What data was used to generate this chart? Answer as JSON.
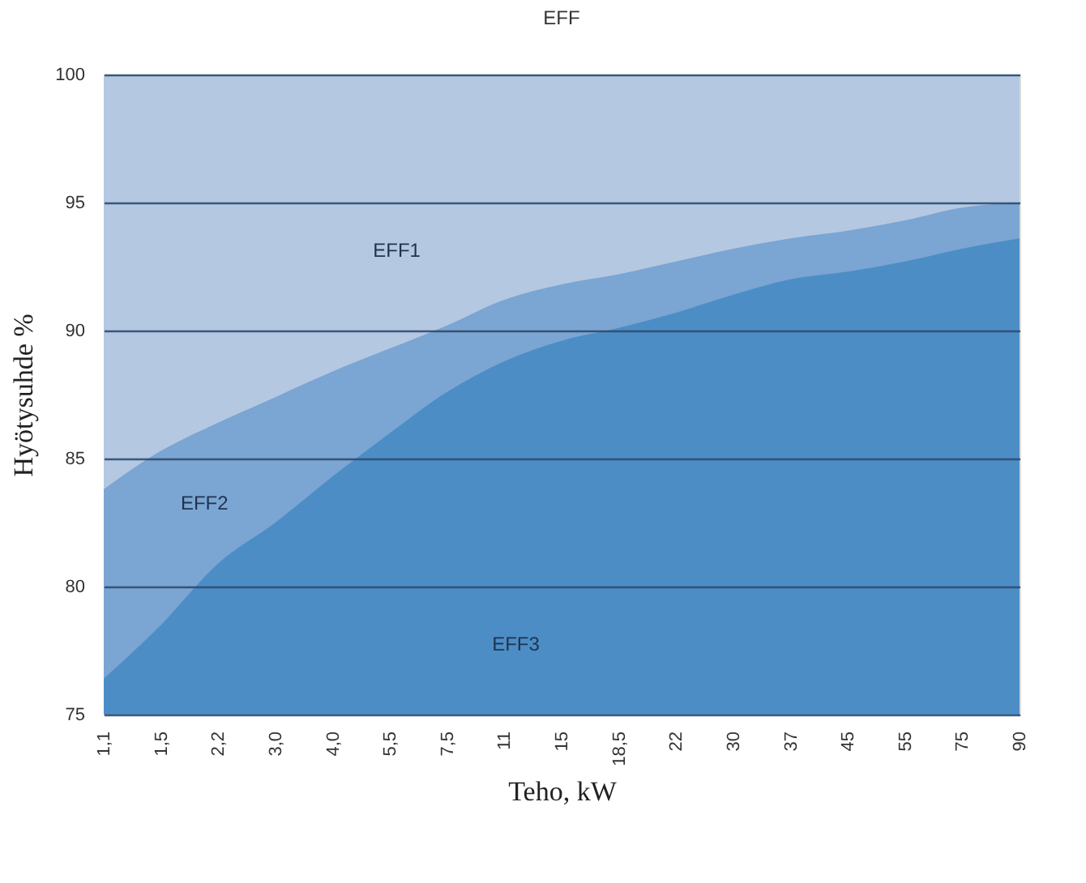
{
  "chart_data": {
    "type": "area",
    "title": "EFF",
    "xlabel": "Teho, kW",
    "ylabel": "Hyötysuhde %",
    "categories": [
      "1,1",
      "1,5",
      "2,2",
      "3,0",
      "4,0",
      "5,5",
      "7,5",
      "11",
      "15",
      "18,5",
      "22",
      "30",
      "37",
      "45",
      "55",
      "75",
      "90"
    ],
    "series": [
      {
        "color": "#b4c8e2",
        "values": [
          100,
          100,
          100,
          100,
          100,
          100,
          100,
          100,
          100,
          100,
          100,
          100,
          100,
          100,
          100,
          100,
          100
        ]
      },
      {
        "color": "#7ba5d2",
        "values": [
          83.8,
          85.3,
          86.4,
          87.4,
          88.4,
          89.3,
          90.2,
          91.2,
          91.8,
          92.2,
          92.7,
          93.2,
          93.6,
          93.9,
          94.3,
          94.8,
          95.0
        ]
      },
      {
        "color": "#4d8dc6",
        "values": [
          76.4,
          78.5,
          80.9,
          82.5,
          84.3,
          86.0,
          87.6,
          88.8,
          89.6,
          90.1,
          90.7,
          91.4,
          92.0,
          92.3,
          92.7,
          93.2,
          93.6
        ]
      }
    ],
    "annotations": [
      "EFF1",
      "EFF2",
      "EFF3"
    ],
    "ylim": [
      75,
      100
    ],
    "yticks": [
      75,
      80,
      85,
      90,
      95,
      100
    ],
    "grid": "y"
  }
}
